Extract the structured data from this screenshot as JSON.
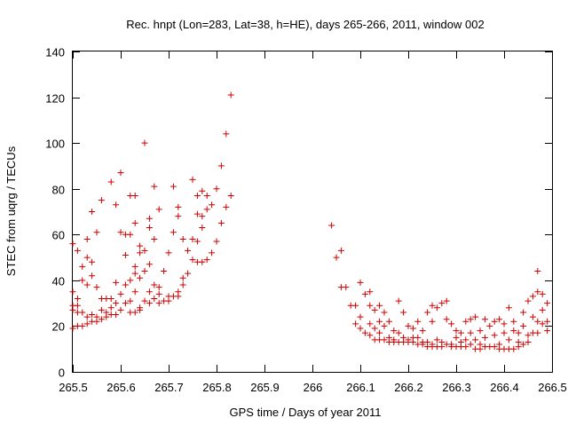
{
  "chart_data": {
    "type": "scatter",
    "title": "Rec. hnpt (Lon=283, Lat=38, h=HE), days 265-266, 2011, window 002",
    "xlabel": "GPS time / Days of year 2011",
    "ylabel": "STEC from uqrg / TECUs",
    "xlim": [
      265.5,
      266.5
    ],
    "ylim": [
      0,
      140
    ],
    "xticks": [
      265.5,
      265.6,
      265.7,
      265.8,
      265.9,
      266,
      266.1,
      266.2,
      266.3,
      266.4,
      266.5
    ],
    "xtick_labels": [
      "265.5",
      "265.6",
      "265.7",
      "265.8",
      "265.9",
      "266",
      "266.1",
      "266.2",
      "266.3",
      "266.4",
      "266.5"
    ],
    "yticks": [
      0,
      20,
      40,
      60,
      80,
      100,
      120,
      140
    ],
    "ytick_labels": [
      "0",
      "20",
      "40",
      "60",
      "80",
      "100",
      "120",
      "140"
    ],
    "grid": false,
    "marker": "+",
    "color": "#cc0000",
    "series": [
      {
        "name": "",
        "points": [
          [
            265.5,
            56
          ],
          [
            265.5,
            35
          ],
          [
            265.5,
            29
          ],
          [
            265.5,
            27
          ],
          [
            265.5,
            19
          ],
          [
            265.51,
            53
          ],
          [
            265.51,
            32
          ],
          [
            265.51,
            29
          ],
          [
            265.51,
            26
          ],
          [
            265.51,
            20
          ],
          [
            265.52,
            46
          ],
          [
            265.52,
            40
          ],
          [
            265.52,
            26
          ],
          [
            265.52,
            20
          ],
          [
            265.53,
            58
          ],
          [
            265.53,
            50
          ],
          [
            265.53,
            38
          ],
          [
            265.53,
            24
          ],
          [
            265.53,
            21
          ],
          [
            265.54,
            70
          ],
          [
            265.54,
            48
          ],
          [
            265.54,
            42
          ],
          [
            265.54,
            25
          ],
          [
            265.54,
            22
          ],
          [
            265.55,
            61
          ],
          [
            265.55,
            37
          ],
          [
            265.55,
            24
          ],
          [
            265.55,
            22
          ],
          [
            265.56,
            75
          ],
          [
            265.56,
            32
          ],
          [
            265.56,
            27
          ],
          [
            265.56,
            23
          ],
          [
            265.57,
            32
          ],
          [
            265.57,
            26
          ],
          [
            265.57,
            24
          ],
          [
            265.58,
            83
          ],
          [
            265.58,
            32
          ],
          [
            265.58,
            28
          ],
          [
            265.58,
            25
          ],
          [
            265.59,
            73
          ],
          [
            265.59,
            39
          ],
          [
            265.59,
            30
          ],
          [
            265.59,
            25
          ],
          [
            265.6,
            87
          ],
          [
            265.6,
            61
          ],
          [
            265.6,
            34
          ],
          [
            265.6,
            27
          ],
          [
            265.61,
            60
          ],
          [
            265.61,
            51
          ],
          [
            265.61,
            38
          ],
          [
            265.61,
            30
          ],
          [
            265.62,
            77
          ],
          [
            265.62,
            60
          ],
          [
            265.62,
            40
          ],
          [
            265.62,
            31
          ],
          [
            265.62,
            26
          ],
          [
            265.63,
            77
          ],
          [
            265.63,
            65
          ],
          [
            265.63,
            46
          ],
          [
            265.63,
            43
          ],
          [
            265.63,
            35
          ],
          [
            265.63,
            26
          ],
          [
            265.64,
            55
          ],
          [
            265.64,
            52
          ],
          [
            265.64,
            41
          ],
          [
            265.64,
            28
          ],
          [
            265.64,
            27
          ],
          [
            265.65,
            100
          ],
          [
            265.65,
            53
          ],
          [
            265.65,
            44
          ],
          [
            265.65,
            31
          ],
          [
            265.66,
            67
          ],
          [
            265.66,
            63
          ],
          [
            265.66,
            47
          ],
          [
            265.66,
            35
          ],
          [
            265.66,
            30
          ],
          [
            265.67,
            81
          ],
          [
            265.67,
            58
          ],
          [
            265.67,
            38
          ],
          [
            265.67,
            32
          ],
          [
            265.68,
            71
          ],
          [
            265.68,
            37
          ],
          [
            265.68,
            34
          ],
          [
            265.68,
            30
          ],
          [
            265.69,
            44
          ],
          [
            265.69,
            31
          ],
          [
            265.7,
            52
          ],
          [
            265.7,
            33
          ],
          [
            265.7,
            31
          ],
          [
            265.71,
            81
          ],
          [
            265.71,
            61
          ],
          [
            265.71,
            33
          ],
          [
            265.72,
            72
          ],
          [
            265.72,
            68
          ],
          [
            265.72,
            35
          ],
          [
            265.72,
            33
          ],
          [
            265.73,
            58
          ],
          [
            265.73,
            41
          ],
          [
            265.73,
            38
          ],
          [
            265.74,
            53
          ],
          [
            265.74,
            43
          ],
          [
            265.75,
            84
          ],
          [
            265.75,
            58
          ],
          [
            265.75,
            49
          ],
          [
            265.76,
            77
          ],
          [
            265.76,
            69
          ],
          [
            265.76,
            57
          ],
          [
            265.76,
            48
          ],
          [
            265.77,
            79
          ],
          [
            265.77,
            68
          ],
          [
            265.77,
            63
          ],
          [
            265.77,
            48
          ],
          [
            265.78,
            77
          ],
          [
            265.78,
            71
          ],
          [
            265.78,
            49
          ],
          [
            265.79,
            73
          ],
          [
            265.79,
            52
          ],
          [
            265.8,
            80
          ],
          [
            265.8,
            57
          ],
          [
            265.81,
            90
          ],
          [
            265.81,
            65
          ],
          [
            265.82,
            104
          ],
          [
            265.82,
            72
          ],
          [
            265.83,
            121
          ],
          [
            265.83,
            77
          ],
          [
            266.04,
            64
          ],
          [
            266.05,
            50
          ],
          [
            266.06,
            53
          ],
          [
            266.06,
            37
          ],
          [
            266.07,
            37
          ],
          [
            266.08,
            29
          ],
          [
            266.09,
            29
          ],
          [
            266.09,
            21
          ],
          [
            266.1,
            39
          ],
          [
            266.1,
            24
          ],
          [
            266.1,
            19
          ],
          [
            266.11,
            34
          ],
          [
            266.11,
            17
          ],
          [
            266.12,
            35
          ],
          [
            266.12,
            29
          ],
          [
            266.12,
            21
          ],
          [
            266.12,
            16
          ],
          [
            266.13,
            27
          ],
          [
            266.13,
            19
          ],
          [
            266.13,
            14
          ],
          [
            266.14,
            29
          ],
          [
            266.14,
            22
          ],
          [
            266.14,
            17
          ],
          [
            266.14,
            14
          ],
          [
            266.15,
            26
          ],
          [
            266.15,
            20
          ],
          [
            266.15,
            14
          ],
          [
            266.16,
            22
          ],
          [
            266.16,
            15
          ],
          [
            266.16,
            13
          ],
          [
            266.17,
            18
          ],
          [
            266.17,
            14
          ],
          [
            266.17,
            13
          ],
          [
            266.18,
            31
          ],
          [
            266.18,
            17
          ],
          [
            266.18,
            13
          ],
          [
            266.19,
            26
          ],
          [
            266.19,
            15
          ],
          [
            266.19,
            13
          ],
          [
            266.2,
            20
          ],
          [
            266.2,
            14
          ],
          [
            266.2,
            13
          ],
          [
            266.21,
            19
          ],
          [
            266.21,
            15
          ],
          [
            266.21,
            13
          ],
          [
            266.22,
            22
          ],
          [
            266.22,
            15
          ],
          [
            266.22,
            12
          ],
          [
            266.23,
            18
          ],
          [
            266.23,
            13
          ],
          [
            266.23,
            12
          ],
          [
            266.24,
            26
          ],
          [
            266.24,
            13
          ],
          [
            266.24,
            11
          ],
          [
            266.25,
            29
          ],
          [
            266.25,
            22
          ],
          [
            266.25,
            12
          ],
          [
            266.25,
            11
          ],
          [
            266.26,
            28
          ],
          [
            266.26,
            14
          ],
          [
            266.26,
            11
          ],
          [
            266.27,
            30
          ],
          [
            266.27,
            13
          ],
          [
            266.27,
            11
          ],
          [
            266.28,
            31
          ],
          [
            266.28,
            23
          ],
          [
            266.28,
            12
          ],
          [
            266.29,
            21
          ],
          [
            266.29,
            12
          ],
          [
            266.29,
            11
          ],
          [
            266.3,
            18
          ],
          [
            266.3,
            15
          ],
          [
            266.3,
            11
          ],
          [
            266.31,
            17
          ],
          [
            266.31,
            13
          ],
          [
            266.31,
            11
          ],
          [
            266.32,
            22
          ],
          [
            266.32,
            14
          ],
          [
            266.32,
            11
          ],
          [
            266.33,
            23
          ],
          [
            266.33,
            17
          ],
          [
            266.33,
            12
          ],
          [
            266.34,
            24
          ],
          [
            266.34,
            14
          ],
          [
            266.34,
            10
          ],
          [
            266.35,
            18
          ],
          [
            266.35,
            12
          ],
          [
            266.35,
            10
          ],
          [
            266.36,
            23
          ],
          [
            266.36,
            15
          ],
          [
            266.36,
            11
          ],
          [
            266.37,
            20
          ],
          [
            266.37,
            11
          ],
          [
            266.38,
            22
          ],
          [
            266.38,
            16
          ],
          [
            266.38,
            11
          ],
          [
            266.39,
            23
          ],
          [
            266.39,
            12
          ],
          [
            266.39,
            10
          ],
          [
            266.4,
            21
          ],
          [
            266.4,
            17
          ],
          [
            266.4,
            10
          ],
          [
            266.41,
            28
          ],
          [
            266.41,
            14
          ],
          [
            266.41,
            10
          ],
          [
            266.42,
            22
          ],
          [
            266.42,
            18
          ],
          [
            266.42,
            10
          ],
          [
            266.43,
            17
          ],
          [
            266.43,
            13
          ],
          [
            266.43,
            11
          ],
          [
            266.44,
            26
          ],
          [
            266.44,
            20
          ],
          [
            266.44,
            12
          ],
          [
            266.45,
            31
          ],
          [
            266.45,
            16
          ],
          [
            266.45,
            13
          ],
          [
            266.46,
            33
          ],
          [
            266.46,
            24
          ],
          [
            266.46,
            17
          ],
          [
            266.47,
            44
          ],
          [
            266.47,
            35
          ],
          [
            266.47,
            22
          ],
          [
            266.47,
            17
          ],
          [
            266.48,
            34
          ],
          [
            266.48,
            27
          ],
          [
            266.48,
            21
          ],
          [
            266.49,
            30
          ],
          [
            266.49,
            22
          ],
          [
            266.49,
            18
          ]
        ]
      }
    ]
  }
}
